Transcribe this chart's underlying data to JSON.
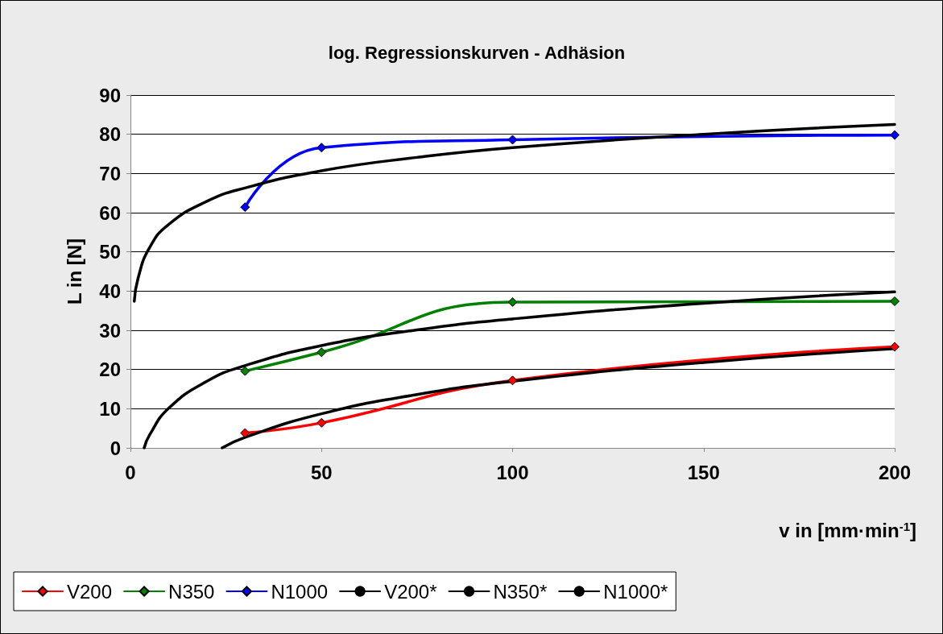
{
  "chart_data": {
    "type": "line",
    "title": "log. Regressionskurven - Adhäsion",
    "xlabel": "v in [mm·min$^{-1}$]",
    "ylabel": "L in [N]",
    "x": [
      30,
      50,
      100,
      200
    ],
    "series": [
      {
        "name": "V200",
        "color": "#ff0000",
        "values": [
          3.8,
          6.4,
          17.2,
          25.8
        ]
      },
      {
        "name": "N350",
        "color": "#008000",
        "values": [
          19.6,
          24.4,
          37.2,
          37.4
        ]
      },
      {
        "name": "N1000",
        "color": "#0000ff",
        "values": [
          61.4,
          76.6,
          78.6,
          79.8
        ]
      },
      {
        "name": "V200*",
        "color": "#000000",
        "marker": "none",
        "x": [
          24,
          30,
          50,
          75,
          100,
          150,
          200
        ],
        "values": [
          0,
          2.7,
          8.7,
          13.6,
          17.0,
          21.8,
          25.3
        ]
      },
      {
        "name": "N350*",
        "color": "#000000",
        "marker": "none",
        "x": [
          3.6,
          5,
          10,
          20,
          30,
          50,
          75,
          100,
          150,
          200
        ],
        "values": [
          0,
          3.3,
          10.1,
          17.0,
          21.0,
          26.1,
          30.1,
          32.9,
          36.9,
          39.8
        ]
      },
      {
        "name": "N1000*",
        "color": "#000000",
        "marker": "none",
        "x": [
          1,
          2,
          5,
          10,
          20,
          30,
          50,
          75,
          100,
          150,
          200
        ],
        "values": [
          37.4,
          43.3,
          51.1,
          57.0,
          62.9,
          66.3,
          70.7,
          74.1,
          76.6,
          80.0,
          82.5
        ]
      }
    ],
    "xlim": [
      0,
      200
    ],
    "xticks": [
      0,
      50,
      100,
      150,
      200
    ],
    "ylim": [
      0,
      90
    ],
    "yticks": [
      0,
      10,
      20,
      30,
      40,
      50,
      60,
      70,
      80,
      90
    ],
    "grid": "y",
    "legend": "bottom left",
    "marker": "diamond"
  }
}
